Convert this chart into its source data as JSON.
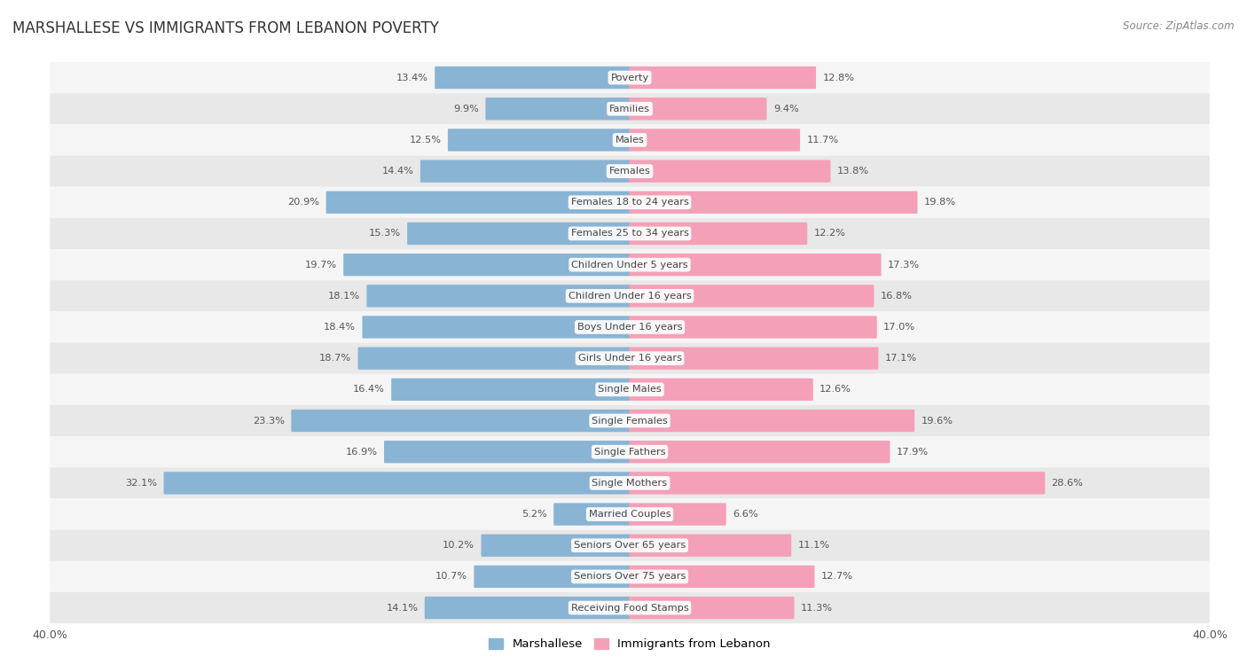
{
  "title": "MARSHALLESE VS IMMIGRANTS FROM LEBANON POVERTY",
  "source": "Source: ZipAtlas.com",
  "categories": [
    "Poverty",
    "Families",
    "Males",
    "Females",
    "Females 18 to 24 years",
    "Females 25 to 34 years",
    "Children Under 5 years",
    "Children Under 16 years",
    "Boys Under 16 years",
    "Girls Under 16 years",
    "Single Males",
    "Single Females",
    "Single Fathers",
    "Single Mothers",
    "Married Couples",
    "Seniors Over 65 years",
    "Seniors Over 75 years",
    "Receiving Food Stamps"
  ],
  "marshallese": [
    13.4,
    9.9,
    12.5,
    14.4,
    20.9,
    15.3,
    19.7,
    18.1,
    18.4,
    18.7,
    16.4,
    23.3,
    16.9,
    32.1,
    5.2,
    10.2,
    10.7,
    14.1
  ],
  "lebanon": [
    12.8,
    9.4,
    11.7,
    13.8,
    19.8,
    12.2,
    17.3,
    16.8,
    17.0,
    17.1,
    12.6,
    19.6,
    17.9,
    28.6,
    6.6,
    11.1,
    12.7,
    11.3
  ],
  "blue_color": "#8ab4d4",
  "pink_color": "#f4a0b8",
  "blue_highlight": "#5b9dc8",
  "pink_highlight": "#e06888",
  "axis_max": 40.0,
  "bg_color": "#ffffff",
  "row_light": "#f5f5f5",
  "row_dark": "#e8e8e8",
  "title_color": "#333333",
  "source_color": "#888888",
  "label_color": "#444444",
  "value_color": "#555555"
}
